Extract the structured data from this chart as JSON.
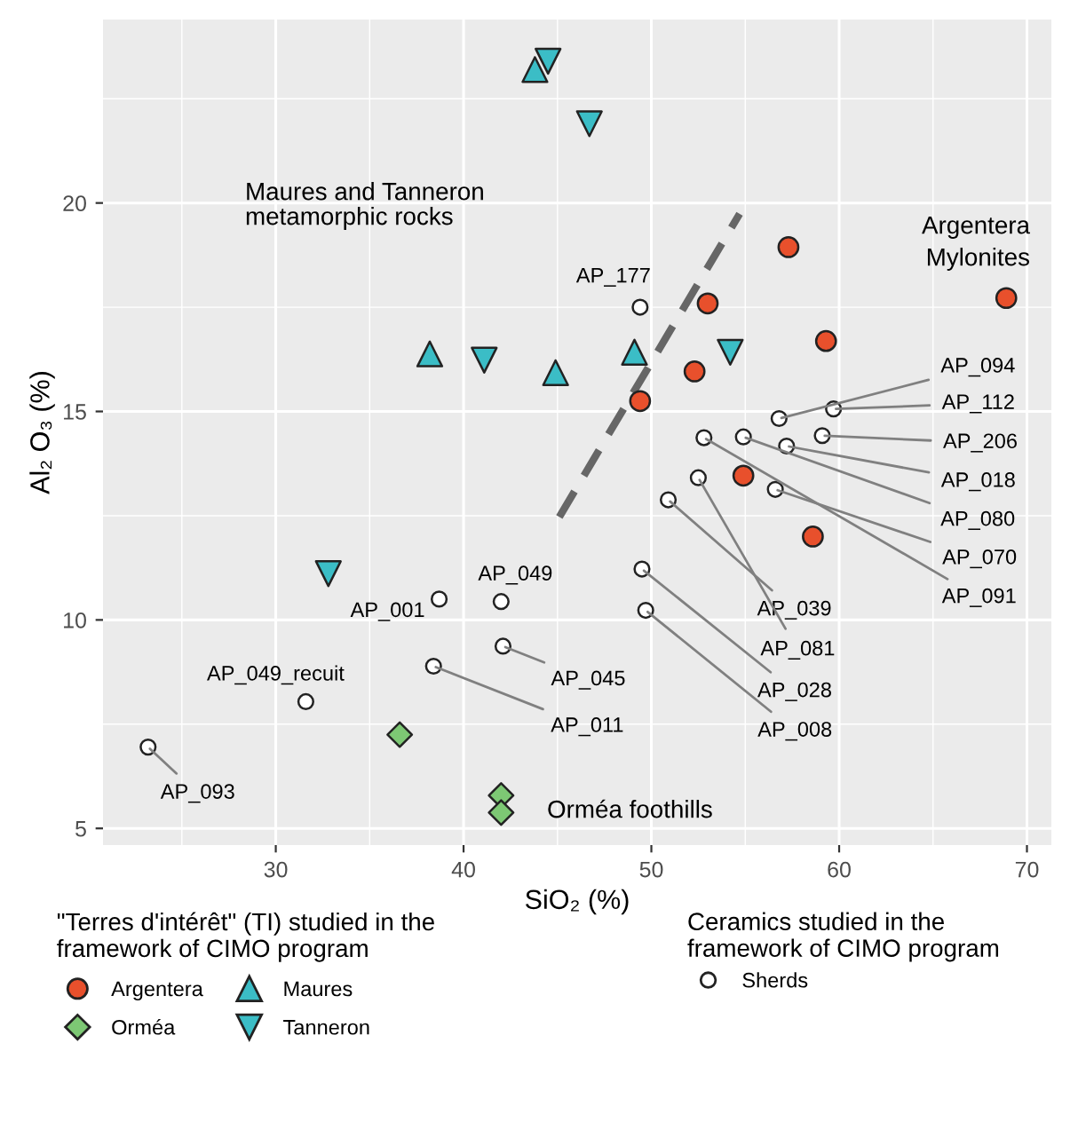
{
  "chart_data": {
    "type": "scatter",
    "xlabel": "SiO₂ (%)",
    "ylabel": "Al₂ O₃ (%)",
    "xlim": [
      20.8,
      71.3
    ],
    "ylim": [
      4.6,
      24.4
    ],
    "xticks": [
      30,
      40,
      50,
      60,
      70
    ],
    "yticks": [
      5,
      10,
      15,
      20
    ],
    "grid": true,
    "legend": "bottom",
    "legend_title": [
      "\"Terres d'intérêt\" (TI) studied in the\nframework of CIMO program",
      "Ceramics studied in the\nframework of CIMO program"
    ],
    "series": [
      {
        "name": "Argentera",
        "color": "#e8502c",
        "marker": "circle",
        "x": [
          57.3,
          53.0,
          68.9,
          59.3,
          52.3,
          49.4,
          54.9,
          58.6
        ],
        "values": [
          18.94,
          17.59,
          17.72,
          16.69,
          15.96,
          15.25,
          13.46,
          12.0
        ]
      },
      {
        "name": "Orméa",
        "color": "#7dc874",
        "marker": "diamond",
        "x": [
          36.6,
          42.0,
          42.0
        ],
        "values": [
          7.25,
          5.79,
          5.38
        ]
      },
      {
        "name": "Maures",
        "color": "#3bbdc6",
        "marker": "triangle",
        "x": [
          43.8,
          38.2,
          44.9,
          49.1
        ],
        "values": [
          23.2,
          16.38,
          15.93,
          16.42
        ]
      },
      {
        "name": "Tanneron",
        "color": "#3bbdc6",
        "marker": "triangle-down",
        "x": [
          44.5,
          46.7,
          41.1,
          54.2,
          32.8
        ],
        "values": [
          23.4,
          21.9,
          16.23,
          16.42,
          11.11
        ]
      },
      {
        "name": "Sherds",
        "color": "#ffffff",
        "marker": "circle",
        "x": [
          49.4,
          56.8,
          59.7,
          59.1,
          57.2,
          54.9,
          56.6,
          52.8,
          50.9,
          52.5,
          49.5,
          49.7,
          38.7,
          42.0,
          42.1,
          38.4,
          31.6,
          23.2
        ],
        "values": [
          17.5,
          14.83,
          15.06,
          14.42,
          14.17,
          14.39,
          13.13,
          14.37,
          12.88,
          13.41,
          11.22,
          10.23,
          10.5,
          10.44,
          9.37,
          8.89,
          8.04,
          6.95
        ]
      },
      {
        "type": "line",
        "color": "#666666",
        "line_style": "dashed",
        "marker": "none",
        "x": [
          45.1,
          54.7
        ],
        "values": [
          12.47,
          19.74
        ]
      }
    ],
    "annotations": [
      {
        "text": "AP_177",
        "x": 49.4,
        "y": 17.5
      },
      {
        "text": "AP_094",
        "x": 56.8,
        "y": 14.83
      },
      {
        "text": "AP_112",
        "x": 59.7,
        "y": 15.06
      },
      {
        "text": "AP_206",
        "x": 59.1,
        "y": 14.42
      },
      {
        "text": "AP_018",
        "x": 57.2,
        "y": 14.17
      },
      {
        "text": "AP_080",
        "x": 54.9,
        "y": 14.39
      },
      {
        "text": "AP_070",
        "x": 56.6,
        "y": 13.13
      },
      {
        "text": "AP_091",
        "x": 52.8,
        "y": 14.37
      },
      {
        "text": "AP_039",
        "x": 50.9,
        "y": 12.88
      },
      {
        "text": "AP_081",
        "x": 52.5,
        "y": 13.41
      },
      {
        "text": "AP_028",
        "x": 49.5,
        "y": 11.22
      },
      {
        "text": "AP_008",
        "x": 49.7,
        "y": 10.23
      },
      {
        "text": "AP_001",
        "x": 38.7,
        "y": 10.5
      },
      {
        "text": "AP_049",
        "x": 42.0,
        "y": 10.44
      },
      {
        "text": "AP_045",
        "x": 42.1,
        "y": 9.37
      },
      {
        "text": "AP_011",
        "x": 38.4,
        "y": 8.89
      },
      {
        "text": "AP_049_recuit",
        "x": 31.6,
        "y": 8.04
      },
      {
        "text": "AP_093",
        "x": 23.2,
        "y": 6.95
      },
      "Maures and Tanneron\nmetamorphic rocks",
      "Argentera\nMylonites",
      "Orméa foothills"
    ]
  }
}
